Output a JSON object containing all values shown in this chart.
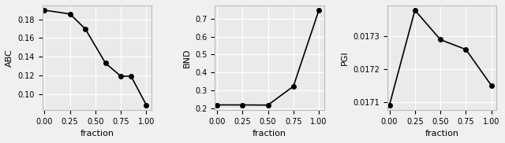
{
  "plot1": {
    "xlabel": "fraction",
    "ylabel": "ABC",
    "x": [
      0.0,
      0.25,
      0.4,
      0.6,
      0.75,
      0.85,
      1.0
    ],
    "y": [
      0.19,
      0.186,
      0.17,
      0.133,
      0.119,
      0.119,
      0.088
    ],
    "xlim": [
      -0.02,
      1.05
    ],
    "xticks": [
      0.0,
      0.25,
      0.5,
      0.75,
      1.0
    ]
  },
  "plot2": {
    "xlabel": "fraction",
    "ylabel": "BND",
    "x": [
      0.0,
      0.25,
      0.5,
      0.75,
      1.0
    ],
    "y": [
      0.218,
      0.218,
      0.217,
      0.322,
      0.748
    ],
    "xlim": [
      -0.02,
      1.05
    ],
    "xticks": [
      0.0,
      0.25,
      0.5,
      0.75,
      1.0
    ]
  },
  "plot3": {
    "xlabel": "fraction",
    "ylabel": "PGI",
    "x": [
      0.0,
      0.25,
      0.5,
      0.75,
      1.0
    ],
    "y": [
      0.01709,
      0.01738,
      0.01729,
      0.01726,
      0.01715
    ],
    "xlim": [
      -0.02,
      1.05
    ],
    "xticks": [
      0.0,
      0.25,
      0.5,
      0.75,
      1.0
    ]
  },
  "marker": "o",
  "markersize": 4,
  "color": "black",
  "linewidth": 1.2,
  "grid": true,
  "grid_color": "#ffffff",
  "bg_color": "#eaeaea",
  "fig_bg_color": "#f0f0f0",
  "xlabel_fontsize": 8,
  "ylabel_fontsize": 8,
  "tick_fontsize": 7
}
